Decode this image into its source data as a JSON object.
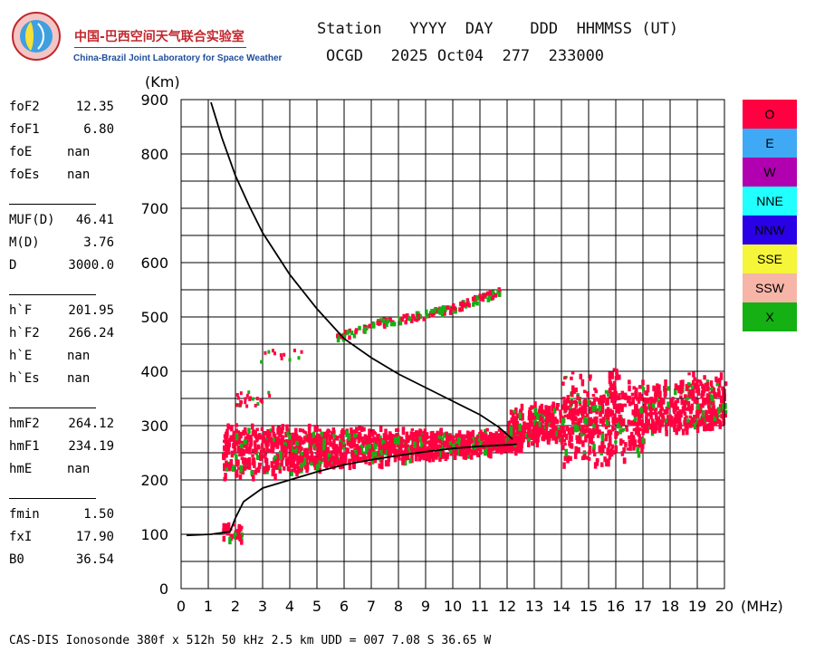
{
  "logo": {
    "name_cn": "中国-巴西空间天气联合实验室",
    "name_en": "China-Brazil Joint Laboratory for Space Weather"
  },
  "header": {
    "line1": "Station   YYYY  DAY    DDD  HHMMSS (UT)",
    "line2": "OCGD   2025 Oct04  277  233000"
  },
  "params": [
    {
      "name": "foF2",
      "value": "12.35"
    },
    {
      "name": "foF1",
      "value": "6.80"
    },
    {
      "name": "foE",
      "value": "nan"
    },
    {
      "name": "foEs",
      "value": "nan"
    },
    {
      "name": "MUF(D)",
      "value": "46.41"
    },
    {
      "name": "M(D)",
      "value": "3.76"
    },
    {
      "name": "D",
      "value": "3000.0"
    },
    {
      "name": "h`F",
      "value": "201.95"
    },
    {
      "name": "h`F2",
      "value": "266.24"
    },
    {
      "name": "h`E",
      "value": "nan"
    },
    {
      "name": "h`Es",
      "value": "nan"
    },
    {
      "name": "hmF2",
      "value": "264.12"
    },
    {
      "name": "hmF1",
      "value": "234.19"
    },
    {
      "name": "hmE",
      "value": "nan"
    },
    {
      "name": "fmin",
      "value": "1.50"
    },
    {
      "name": "fxI",
      "value": "17.90"
    },
    {
      "name": "B0",
      "value": "36.54"
    }
  ],
  "legend": [
    {
      "label": "O",
      "color": "#ff0040"
    },
    {
      "label": "E",
      "color": "#3fa9f5"
    },
    {
      "label": "W",
      "color": "#b000b0"
    },
    {
      "label": "NNE",
      "color": "#22ffff"
    },
    {
      "label": "NNW",
      "color": "#2a00e6"
    },
    {
      "label": "SSE",
      "color": "#f5f53a"
    },
    {
      "label": "SSW",
      "color": "#f7b5a8"
    },
    {
      "label": "X",
      "color": "#14b014"
    }
  ],
  "footer": "CAS-DIS Ionosonde 380f x 512h 50 kHz 2.5 km UDD = 007 7.08 S 36.65 W",
  "chart_data": {
    "type": "scatter",
    "xlabel": "(MHz)",
    "ylabel": "(Km)",
    "xlim": [
      0,
      20
    ],
    "ylim": [
      0,
      900
    ],
    "xticks": [
      0,
      1,
      2,
      3,
      4,
      5,
      6,
      7,
      8,
      9,
      10,
      11,
      12,
      13,
      14,
      15,
      16,
      17,
      18,
      19,
      20
    ],
    "yticks": [
      0,
      100,
      200,
      300,
      400,
      500,
      600,
      700,
      800,
      900
    ],
    "grid": true,
    "series": [
      {
        "name": "O",
        "color": "#ff0040",
        "regions": [
          {
            "x": [
              1.5,
              12.5
            ],
            "y_low": [
              210,
              265
            ],
            "y_high": [
              300,
              285
            ]
          },
          {
            "x": [
              12.0,
              20.0
            ],
            "y_low": [
              275,
              310
            ],
            "y_high": [
              330,
              400
            ]
          },
          {
            "x": [
              1.5,
              2.2
            ],
            "y_low": [
              100,
              100
            ],
            "y_high": [
              115,
              115
            ]
          }
        ],
        "trace": {
          "x": [
            5.7,
            7.0,
            8.0,
            9.0,
            10.0,
            11.0,
            11.7
          ],
          "y": [
            465,
            488,
            498,
            508,
            520,
            538,
            550
          ]
        }
      },
      {
        "name": "X",
        "color": "#14b014",
        "scatter_of": "O"
      }
    ],
    "profile": {
      "x": [
        0.2,
        1.1,
        1.8,
        2.0,
        2.3,
        3.0,
        4.0,
        5.0,
        6.0,
        7.0,
        8.0,
        9.0,
        10.0,
        11.0,
        11.8,
        12.2,
        12.35
      ],
      "y": [
        98,
        100,
        105,
        130,
        160,
        185,
        200,
        215,
        228,
        237,
        245,
        252,
        258,
        262,
        264,
        265,
        266
      ]
    },
    "virtual_height": {
      "x": [
        1.1,
        1.5,
        2.0,
        2.5,
        3.0,
        4.0,
        5.0,
        6.0,
        7.0,
        8.0,
        9.0,
        10.0,
        11.0,
        11.7,
        12.2
      ],
      "y": [
        895,
        830,
        760,
        705,
        655,
        578,
        515,
        460,
        425,
        395,
        370,
        345,
        320,
        297,
        275
      ]
    }
  }
}
